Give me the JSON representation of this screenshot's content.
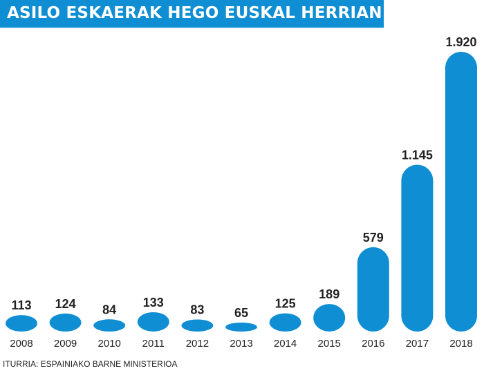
{
  "title": "ASILO ESKAERAK HEGO EUSKAL HERRIAN",
  "source": "ITURRIA: ESPAINIAKO BARNE MINISTERIOA",
  "colors": {
    "bar": "#0f8ed4",
    "label": "#222222",
    "title_bg": "#0f8ed4"
  },
  "chart_data": {
    "type": "bar",
    "title": "ASILO ESKAERAK HEGO EUSKAL HERRIAN",
    "categories": [
      "2008",
      "2009",
      "2010",
      "2011",
      "2012",
      "2013",
      "2014",
      "2015",
      "2016",
      "2017",
      "2018"
    ],
    "values": [
      113,
      124,
      84,
      133,
      83,
      65,
      125,
      189,
      579,
      1145,
      1920
    ],
    "value_labels": [
      "113",
      "124",
      "84",
      "133",
      "83",
      "65",
      "125",
      "189",
      "579",
      "1.145",
      "1.920"
    ],
    "xlabel": "",
    "ylabel": "",
    "ylim": [
      0,
      1920
    ],
    "grid": false,
    "legend": "none"
  }
}
